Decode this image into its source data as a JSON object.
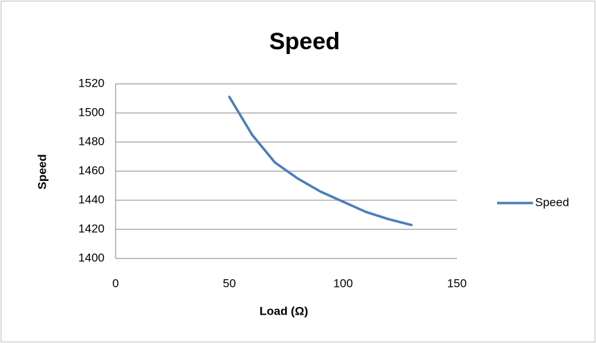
{
  "chart_data": {
    "type": "line",
    "title": "Speed",
    "x_label": "Load (Ω)",
    "y_label": "Speed",
    "x": [
      50,
      60,
      70,
      80,
      90,
      100,
      110,
      120,
      130
    ],
    "series": [
      {
        "name": "Speed",
        "color": "#4a7ebb",
        "values": [
          1511,
          1485,
          1466,
          1455,
          1446,
          1439,
          1432,
          1427,
          1423
        ]
      }
    ],
    "xlim": [
      0,
      150
    ],
    "xticks": [
      0,
      50,
      100,
      150
    ],
    "ylim": [
      1400,
      1520
    ],
    "yticks": [
      1400,
      1420,
      1440,
      1460,
      1480,
      1500,
      1520
    ],
    "grid": true,
    "legend": "right"
  }
}
